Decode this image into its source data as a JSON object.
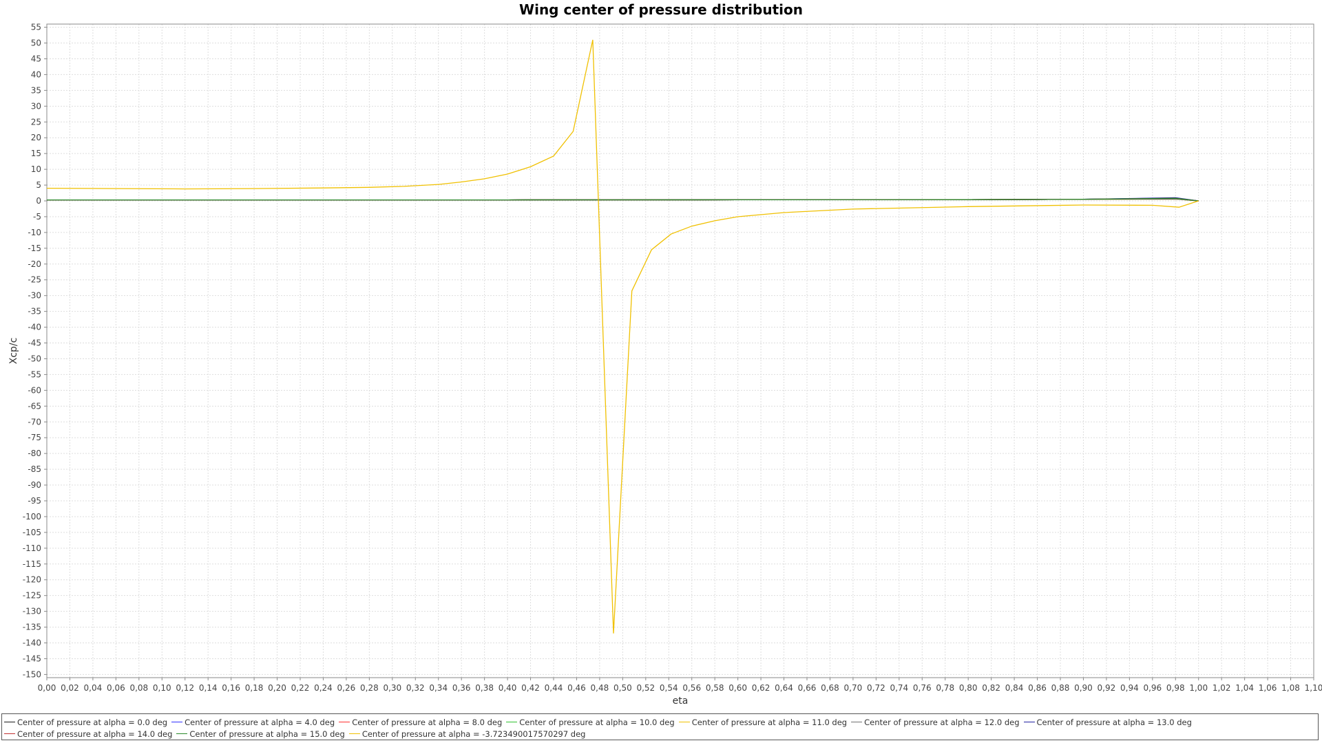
{
  "chart_data": {
    "type": "line",
    "title": "Wing center of pressure distribution",
    "xlabel": "eta",
    "ylabel": "Xcp/c",
    "xlim": [
      0.0,
      1.1
    ],
    "ylim": [
      -151,
      56
    ],
    "x_tick_step": 0.02,
    "y_tick_step": 5,
    "grid": true,
    "legend_position": "bottom",
    "series": [
      {
        "name": "Center of pressure at alpha = 0.0 deg",
        "color": "#1a1a1a",
        "x": [
          0.0,
          0.2,
          0.4,
          0.6,
          0.8,
          0.9,
          0.98,
          1.0
        ],
        "y": [
          0.3,
          0.3,
          0.3,
          0.35,
          0.4,
          0.5,
          0.8,
          0.0
        ]
      },
      {
        "name": "Center of pressure at alpha = 4.0 deg",
        "color": "#3030ff",
        "x": [
          0.0,
          0.2,
          0.4,
          0.6,
          0.8,
          0.9,
          0.98,
          1.0
        ],
        "y": [
          0.3,
          0.3,
          0.3,
          0.35,
          0.4,
          0.5,
          0.9,
          0.0
        ]
      },
      {
        "name": "Center of pressure at alpha = 8.0 deg",
        "color": "#ff3030",
        "x": [
          0.0,
          0.2,
          0.4,
          0.6,
          0.8,
          0.9,
          0.98,
          1.0
        ],
        "y": [
          0.3,
          0.3,
          0.3,
          0.35,
          0.4,
          0.5,
          0.6,
          0.0
        ]
      },
      {
        "name": "Center of pressure at alpha = 10.0 deg",
        "color": "#30c030",
        "x": [
          0.0,
          0.2,
          0.4,
          0.6,
          0.8,
          0.9,
          0.98,
          1.0
        ],
        "y": [
          0.3,
          0.3,
          0.3,
          0.35,
          0.4,
          0.5,
          0.6,
          0.0
        ]
      },
      {
        "name": "Center of pressure at alpha = 11.0 deg",
        "color": "#f0c000",
        "x": [
          0.0,
          0.2,
          0.4,
          0.6,
          0.8,
          0.9,
          0.98,
          1.0
        ],
        "y": [
          0.3,
          0.3,
          0.3,
          0.35,
          0.4,
          0.5,
          0.6,
          0.0
        ]
      },
      {
        "name": "Center of pressure at alpha = 12.0 deg",
        "color": "#707070",
        "x": [
          0.0,
          0.2,
          0.4,
          0.6,
          0.8,
          0.9,
          0.98,
          1.0
        ],
        "y": [
          0.3,
          0.3,
          0.3,
          0.35,
          0.4,
          0.5,
          0.6,
          0.0
        ]
      },
      {
        "name": "Center of pressure at alpha = 13.0 deg",
        "color": "#2020a0",
        "x": [
          0.0,
          0.2,
          0.4,
          0.6,
          0.8,
          0.9,
          0.98,
          1.0
        ],
        "y": [
          0.3,
          0.3,
          0.3,
          0.35,
          0.4,
          0.5,
          1.0,
          0.0
        ]
      },
      {
        "name": "Center of pressure at alpha = 14.0 deg",
        "color": "#c03030",
        "x": [
          0.0,
          0.2,
          0.4,
          0.6,
          0.8,
          0.9,
          0.98,
          1.0
        ],
        "y": [
          0.3,
          0.3,
          0.3,
          0.35,
          0.4,
          0.5,
          0.8,
          0.0
        ]
      },
      {
        "name": "Center of pressure at alpha = 15.0 deg",
        "color": "#2a8a2a",
        "x": [
          0.0,
          0.2,
          0.4,
          0.6,
          0.8,
          0.9,
          0.98,
          1.0
        ],
        "y": [
          0.3,
          0.3,
          0.3,
          0.35,
          0.4,
          0.5,
          0.8,
          0.0
        ]
      },
      {
        "name": "Center of pressure at alpha = -3.723490017570297 deg",
        "color": "#f0c000",
        "x": [
          0.0,
          0.06,
          0.12,
          0.18,
          0.24,
          0.28,
          0.31,
          0.34,
          0.36,
          0.38,
          0.4,
          0.42,
          0.44,
          0.457,
          0.474,
          0.492,
          0.508,
          0.525,
          0.542,
          0.56,
          0.58,
          0.6,
          0.64,
          0.7,
          0.8,
          0.9,
          0.96,
          0.983,
          1.0
        ],
        "y": [
          4.0,
          3.9,
          3.8,
          3.9,
          4.1,
          4.3,
          4.6,
          5.2,
          6.0,
          7.0,
          8.5,
          10.8,
          14.2,
          22.0,
          51.0,
          -137.0,
          -28.5,
          -15.5,
          -10.5,
          -8.0,
          -6.3,
          -5.0,
          -3.7,
          -2.6,
          -1.8,
          -1.3,
          -1.4,
          -2.0,
          0.0
        ]
      }
    ]
  }
}
